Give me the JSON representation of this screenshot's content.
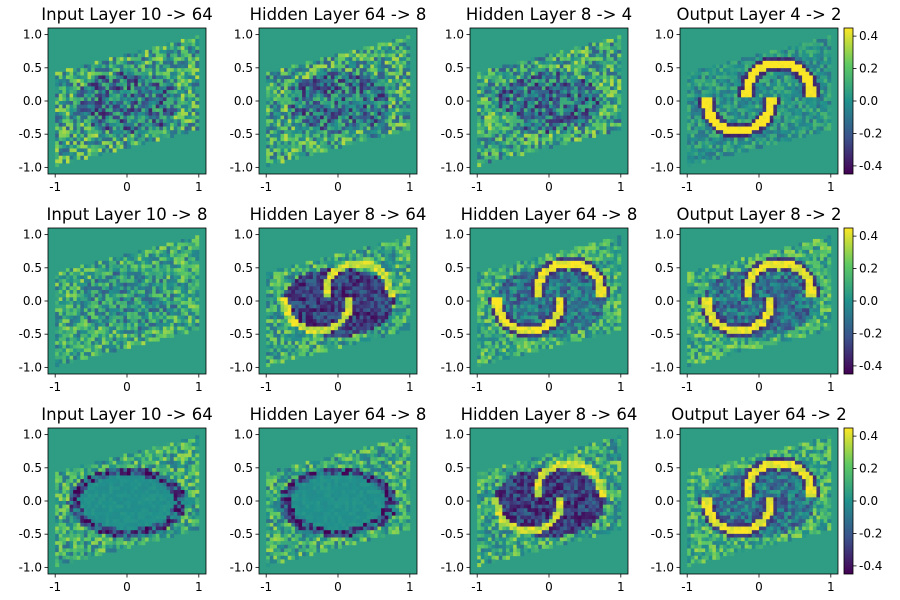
{
  "figure": {
    "description_type": "grid of layer activation heatmaps",
    "colormap": "viridis",
    "colormap_stops": [
      "#440154",
      "#3b528b",
      "#21918c",
      "#5ec962",
      "#fde725"
    ]
  },
  "chart_data": [
    {
      "type": "heatmap",
      "title": "Input Layer 10 -> 64",
      "xlim": [
        -1.1,
        1.1
      ],
      "ylim": [
        -1.1,
        1.1
      ],
      "xticks": [
        "-1",
        "0",
        "1"
      ],
      "yticks": [
        "1.0",
        "0.5",
        "0.0",
        "-0.5",
        "-1.0"
      ],
      "pattern": "ring",
      "clim": [
        -0.45,
        0.45
      ]
    },
    {
      "type": "heatmap",
      "title": "Hidden Layer  64 -> 8",
      "xlim": [
        -1.1,
        1.1
      ],
      "ylim": [
        -1.1,
        1.1
      ],
      "xticks": [
        "-1",
        "0",
        "1"
      ],
      "yticks": [
        "1.0",
        "0.5",
        "0.0",
        "-0.5",
        "-1.0"
      ],
      "pattern": "ring",
      "clim": [
        -0.45,
        0.45
      ]
    },
    {
      "type": "heatmap",
      "title": "Hidden Layer  8 -> 4",
      "xlim": [
        -1.1,
        1.1
      ],
      "ylim": [
        -1.1,
        1.1
      ],
      "xticks": [
        "-1",
        "0",
        "1"
      ],
      "yticks": [
        "1.0",
        "0.5",
        "0.0",
        "-0.5",
        "-1.0"
      ],
      "pattern": "ring",
      "clim": [
        -0.45,
        0.45
      ]
    },
    {
      "type": "heatmap",
      "title": "Output Layer 4 -> 2",
      "xlim": [
        -1.1,
        1.1
      ],
      "ylim": [
        -1.1,
        1.1
      ],
      "xticks": [
        "-1",
        "0",
        "1"
      ],
      "yticks": [
        "1.0",
        "0.5",
        "0.0",
        "-0.5",
        "-1.0"
      ],
      "pattern": "moons-high",
      "clim": [
        -0.45,
        0.45
      ],
      "colorbar_ticks": [
        "0.4",
        "0.2",
        "0.0",
        "-0.2",
        "-0.4"
      ]
    },
    {
      "type": "heatmap",
      "title": "Input Layer 10 -> 8",
      "xlim": [
        -1.1,
        1.1
      ],
      "ylim": [
        -1.1,
        1.1
      ],
      "xticks": [
        "-1",
        "0",
        "1"
      ],
      "yticks": [
        "1.0",
        "0.5",
        "0.0",
        "-0.5",
        "-1.0"
      ],
      "pattern": "faint",
      "clim": [
        -0.45,
        0.45
      ]
    },
    {
      "type": "heatmap",
      "title": "Hidden Layer  8 -> 64",
      "xlim": [
        -1.1,
        1.1
      ],
      "ylim": [
        -1.1,
        1.1
      ],
      "xticks": [
        "-1",
        "0",
        "1"
      ],
      "yticks": [
        "1.0",
        "0.5",
        "0.0",
        "-0.5",
        "-1.0"
      ],
      "pattern": "moons-low",
      "clim": [
        -0.45,
        0.45
      ]
    },
    {
      "type": "heatmap",
      "title": "Hidden Layer  64 -> 8",
      "xlim": [
        -1.1,
        1.1
      ],
      "ylim": [
        -1.1,
        1.1
      ],
      "xticks": [
        "-1",
        "0",
        "1"
      ],
      "yticks": [
        "1.0",
        "0.5",
        "0.0",
        "-0.5",
        "-1.0"
      ],
      "pattern": "moons-mid",
      "clim": [
        -0.45,
        0.45
      ]
    },
    {
      "type": "heatmap",
      "title": "Output Layer 8 -> 2",
      "xlim": [
        -1.1,
        1.1
      ],
      "ylim": [
        -1.1,
        1.1
      ],
      "xticks": [
        "-1",
        "0",
        "1"
      ],
      "yticks": [
        "1.0",
        "0.5",
        "0.0",
        "-0.5",
        "-1.0"
      ],
      "pattern": "moons-mid",
      "clim": [
        -0.45,
        0.45
      ],
      "colorbar_ticks": [
        "0.4",
        "0.2",
        "0.0",
        "-0.2",
        "-0.4"
      ]
    },
    {
      "type": "heatmap",
      "title": "Input Layer 10 -> 64",
      "xlim": [
        -1.1,
        1.1
      ],
      "ylim": [
        -1.1,
        1.1
      ],
      "xticks": [
        "-1",
        "0",
        "1"
      ],
      "yticks": [
        "1.0",
        "0.5",
        "0.0",
        "-0.5",
        "-1.0"
      ],
      "pattern": "hole",
      "clim": [
        -0.45,
        0.45
      ]
    },
    {
      "type": "heatmap",
      "title": "Hidden Layer  64 -> 8",
      "xlim": [
        -1.1,
        1.1
      ],
      "ylim": [
        -1.1,
        1.1
      ],
      "xticks": [
        "-1",
        "0",
        "1"
      ],
      "yticks": [
        "1.0",
        "0.5",
        "0.0",
        "-0.5",
        "-1.0"
      ],
      "pattern": "hole",
      "clim": [
        -0.45,
        0.45
      ]
    },
    {
      "type": "heatmap",
      "title": "Hidden Layer  8 -> 64",
      "xlim": [
        -1.1,
        1.1
      ],
      "ylim": [
        -1.1,
        1.1
      ],
      "xticks": [
        "-1",
        "0",
        "1"
      ],
      "yticks": [
        "1.0",
        "0.5",
        "0.0",
        "-0.5",
        "-1.0"
      ],
      "pattern": "moons-low",
      "clim": [
        -0.45,
        0.45
      ]
    },
    {
      "type": "heatmap",
      "title": "Output Layer 64 -> 2",
      "xlim": [
        -1.1,
        1.1
      ],
      "ylim": [
        -1.1,
        1.1
      ],
      "xticks": [
        "-1",
        "0",
        "1"
      ],
      "yticks": [
        "1.0",
        "0.5",
        "0.0",
        "-0.5",
        "-1.0"
      ],
      "pattern": "moons-mid",
      "clim": [
        -0.45,
        0.45
      ],
      "colorbar_ticks": [
        "0.4",
        "0.2",
        "0.0",
        "-0.2",
        "-0.4"
      ]
    }
  ]
}
